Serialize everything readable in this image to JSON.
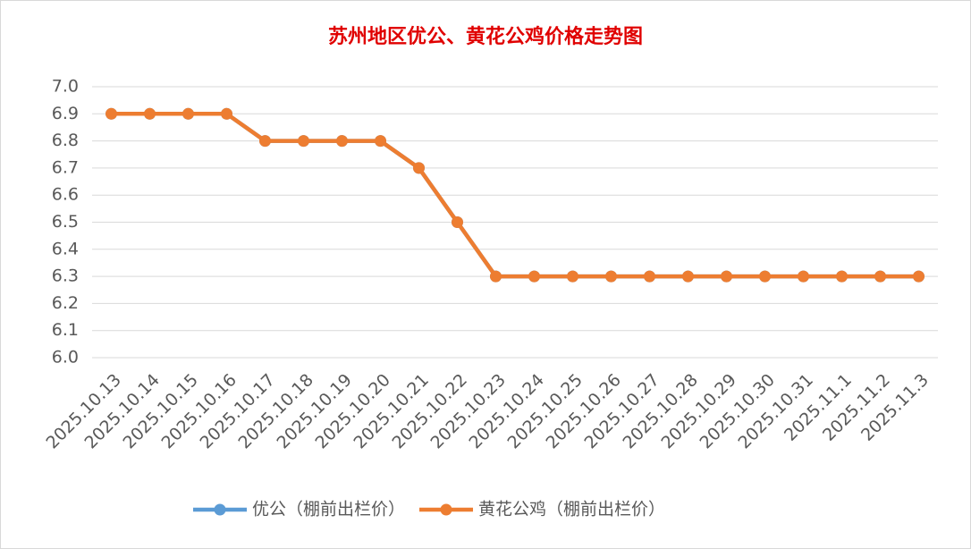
{
  "chart_data": {
    "type": "line",
    "title": "苏州地区优公、黄花公鸡价格走势图",
    "categories": [
      "2025.10.13",
      "2025.10.14",
      "2025.10.15",
      "2025.10.16",
      "2025.10.17",
      "2025.10.18",
      "2025.10.19",
      "2025.10.20",
      "2025.10.21",
      "2025.10.22",
      "2025.10.23",
      "2025.10.24",
      "2025.10.25",
      "2025.10.26",
      "2025.10.27",
      "2025.10.28",
      "2025.10.29",
      "2025.10.30",
      "2025.10.31",
      "2025.11.1",
      "2025.11.2",
      "2025.11.3"
    ],
    "series": [
      {
        "name": "优公（棚前出栏价）",
        "color": "#5b9bd5",
        "values": [
          6.9,
          6.9,
          6.9,
          6.9,
          6.8,
          6.8,
          6.8,
          6.8,
          6.7,
          6.5,
          6.3,
          6.3,
          6.3,
          6.3,
          6.3,
          6.3,
          6.3,
          6.3,
          6.3,
          6.3,
          6.3,
          6.3
        ]
      },
      {
        "name": "黄花公鸡（棚前出栏价）",
        "color": "#ed7d31",
        "values": [
          6.9,
          6.9,
          6.9,
          6.9,
          6.8,
          6.8,
          6.8,
          6.8,
          6.7,
          6.5,
          6.3,
          6.3,
          6.3,
          6.3,
          6.3,
          6.3,
          6.3,
          6.3,
          6.3,
          6.3,
          6.3,
          6.3
        ]
      }
    ],
    "ylim": [
      6.0,
      7.0
    ],
    "yticks": [
      {
        "value": 6.0,
        "label": "6.0"
      },
      6.1,
      6.2,
      6.3,
      6.4,
      6.5,
      6.6,
      6.7,
      6.8,
      6.9,
      {
        "value": 7.0,
        "label": "7.0"
      }
    ],
    "grid": true,
    "legend": "bottom"
  }
}
